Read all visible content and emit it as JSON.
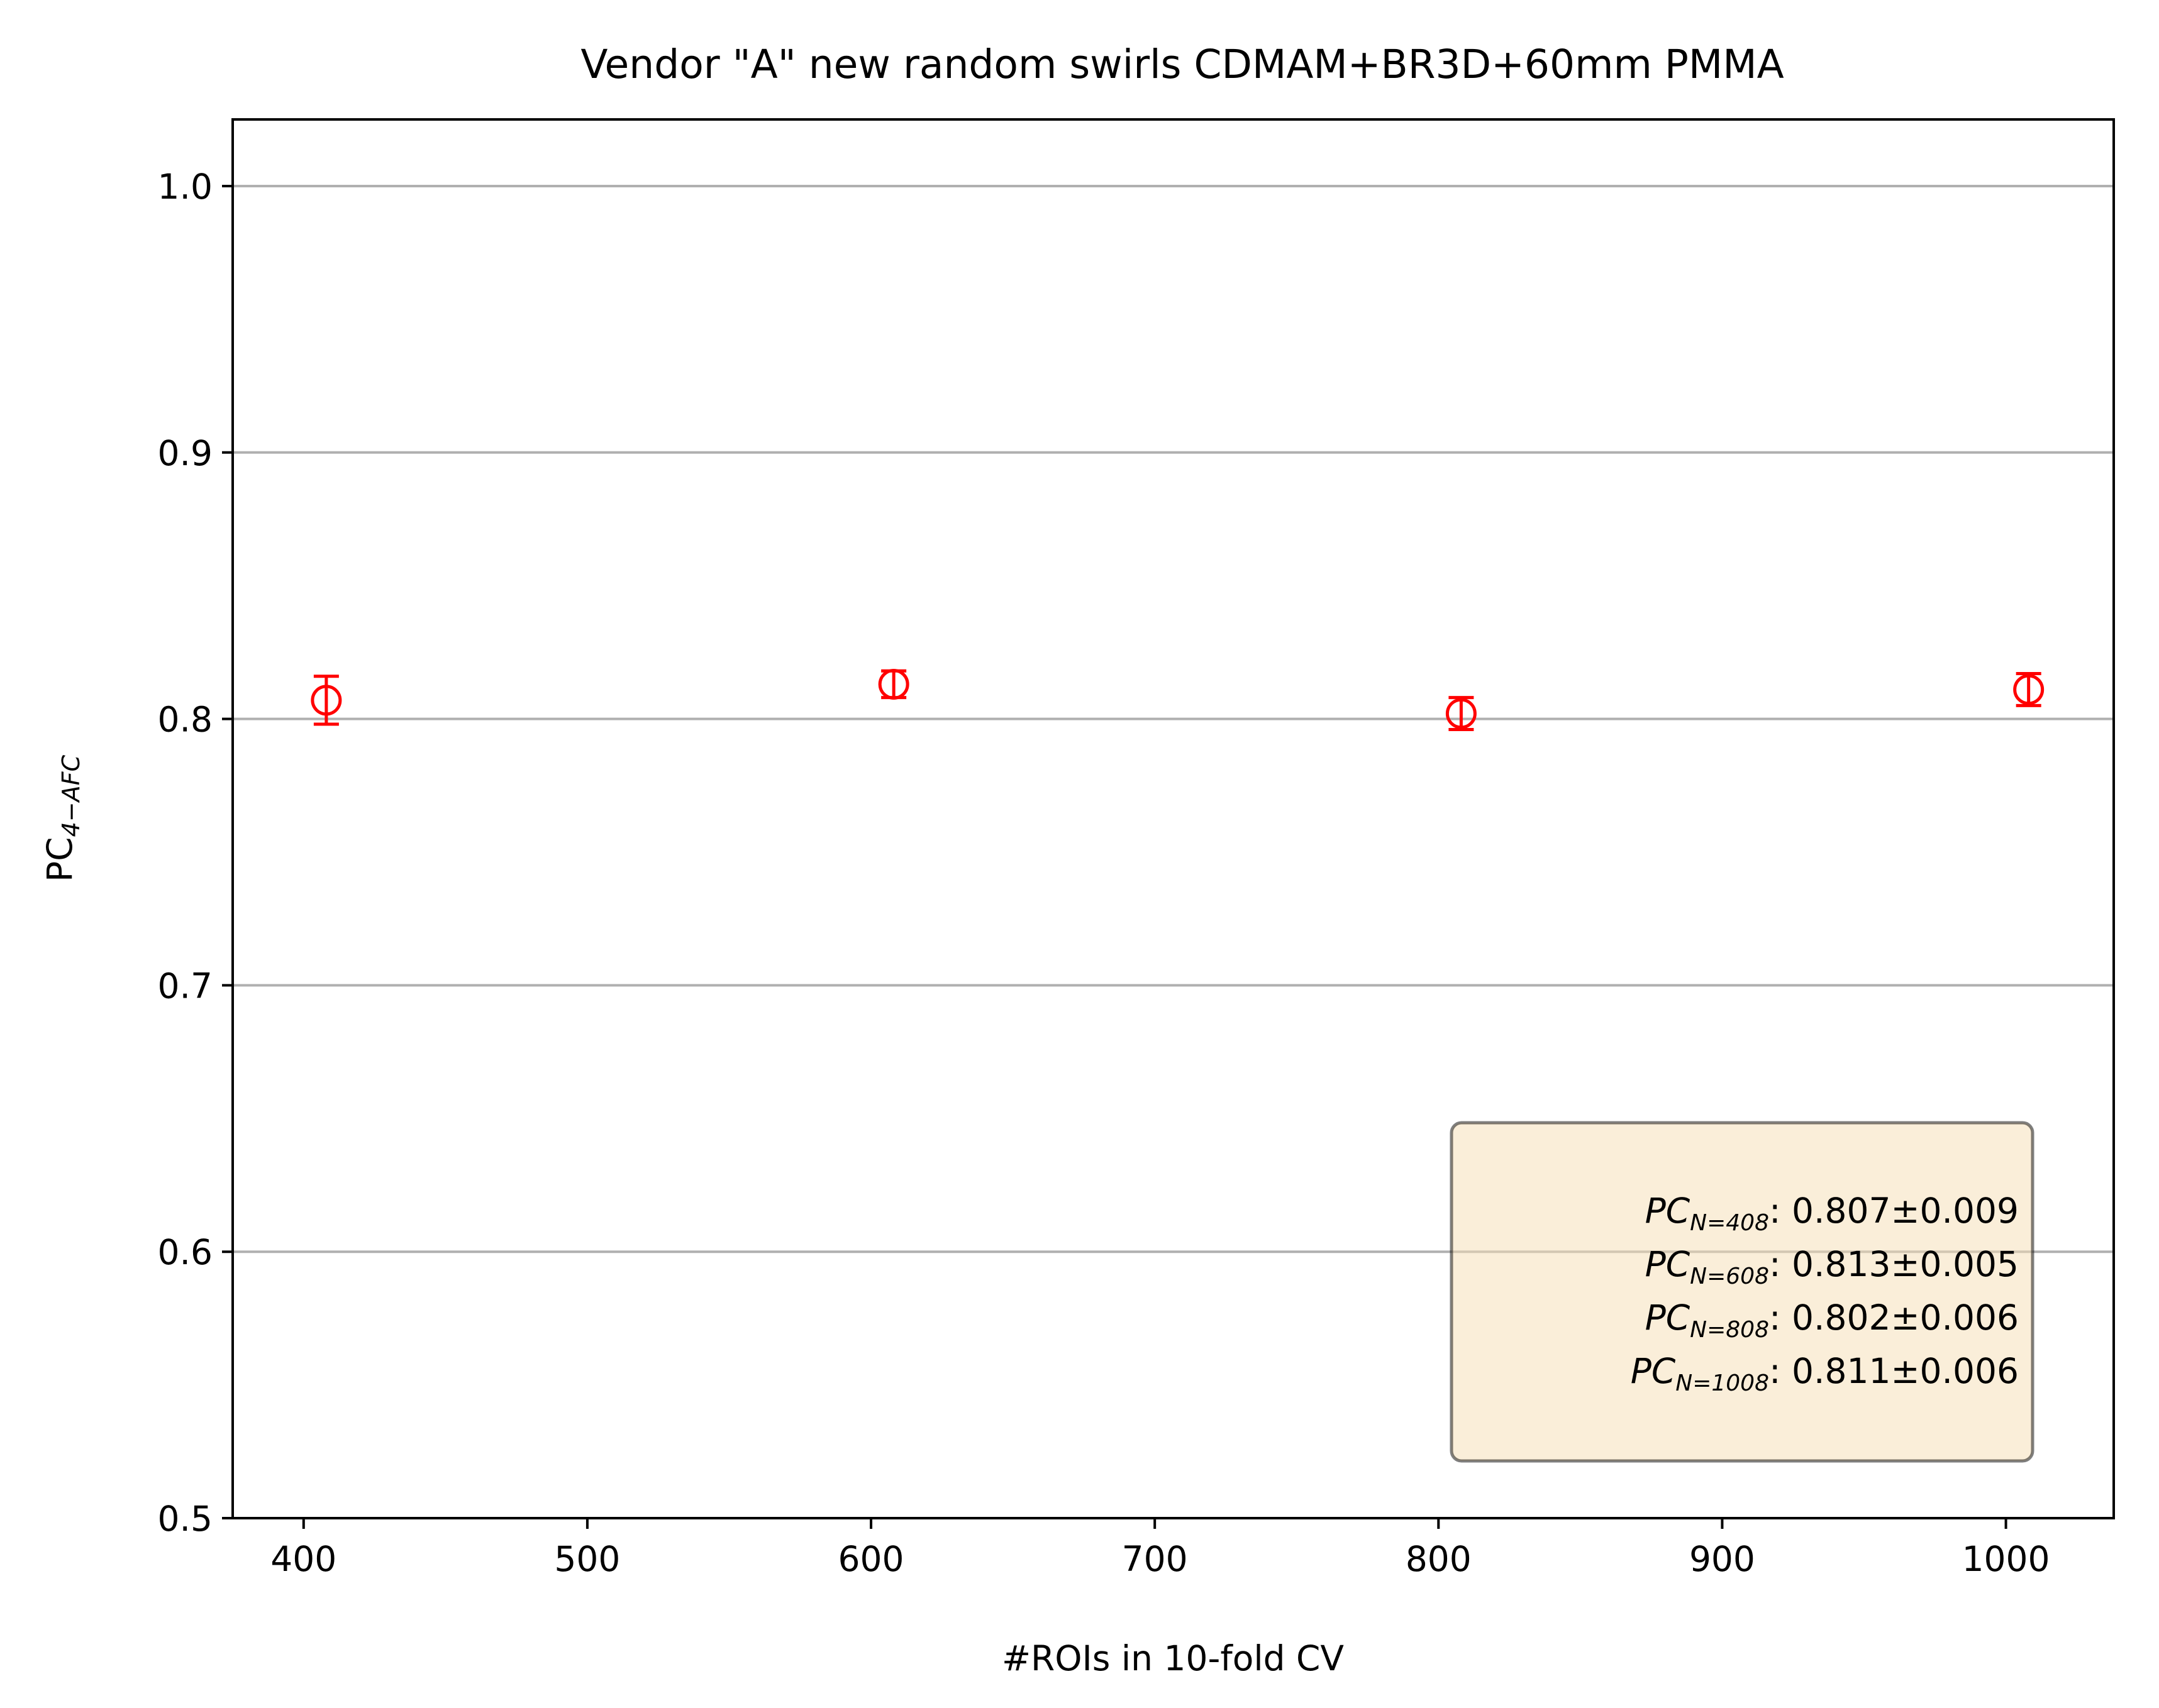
{
  "chart_data": {
    "type": "scatter",
    "title": "Vendor \"A\" new random swirls CDMAM+BR3D+60mm PMMA",
    "xlabel": "#ROIs in 10-fold CV",
    "ylabel": {
      "main": "PC",
      "sub": "4−AFC"
    },
    "xlim": [
      375,
      1038
    ],
    "ylim": [
      0.5,
      1.025
    ],
    "x_ticks": [
      400,
      500,
      600,
      700,
      800,
      900,
      1000
    ],
    "y_ticks": [
      0.5,
      0.6,
      0.7,
      0.8,
      0.9,
      1.0
    ],
    "x_tick_labels": [
      "400",
      "500",
      "600",
      "700",
      "800",
      "900",
      "1000"
    ],
    "y_tick_labels": [
      "0.5",
      "0.6",
      "0.7",
      "0.8",
      "0.9",
      "1.0"
    ],
    "grid": {
      "axis": "y",
      "on": true,
      "color": "#b0b0b0"
    },
    "series": [
      {
        "color": "#ff0000",
        "marker": "open-circle",
        "points": [
          {
            "x": 408,
            "y": 0.807,
            "err": 0.009
          },
          {
            "x": 608,
            "y": 0.813,
            "err": 0.005
          },
          {
            "x": 808,
            "y": 0.802,
            "err": 0.006
          },
          {
            "x": 1008,
            "y": 0.811,
            "err": 0.006
          }
        ]
      }
    ],
    "annotation_box": {
      "placement": "bottom-right",
      "background": "#f5deb3",
      "lines": [
        {
          "pc": "PC",
          "sub": "N=408",
          "value": ": 0.807±0.009"
        },
        {
          "pc": "PC",
          "sub": "N=608",
          "value": ": 0.813±0.005"
        },
        {
          "pc": "PC",
          "sub": "N=808",
          "value": ": 0.802±0.006"
        },
        {
          "pc": "PC",
          "sub": "N=1008",
          "value": ": 0.811±0.006"
        }
      ]
    }
  }
}
